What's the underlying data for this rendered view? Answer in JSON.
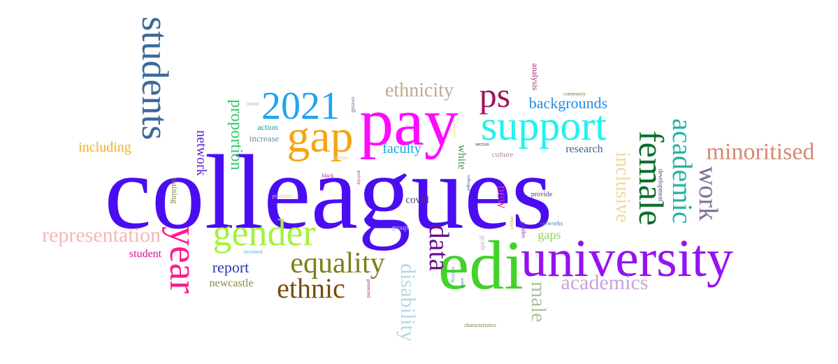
{
  "words": [
    {
      "text": "colleagues",
      "color": "#4a0df2"
    },
    {
      "text": "edi",
      "color": "#45d12c"
    },
    {
      "text": "pay",
      "color": "#ff0aff"
    },
    {
      "text": "university",
      "color": "#9512ef"
    },
    {
      "text": "students",
      "color": "#3a6a9a"
    },
    {
      "text": "support",
      "color": "#22f2ee"
    },
    {
      "text": "gap",
      "color": "#f5a511"
    },
    {
      "text": "2021",
      "color": "#1ea5ef"
    },
    {
      "text": "gender",
      "color": "#a3f23c"
    },
    {
      "text": "year",
      "color": "#ff1a8c"
    },
    {
      "text": "female",
      "color": "#0a6e2a"
    },
    {
      "text": "ps",
      "color": "#a3145f"
    },
    {
      "text": "equality",
      "color": "#7a7f1a"
    },
    {
      "text": "ethnic",
      "color": "#7a4c0a"
    },
    {
      "text": "data",
      "color": "#6b0f8c"
    },
    {
      "text": "academic",
      "color": "#22b5a5"
    },
    {
      "text": "minoritised",
      "color": "#d68a72"
    },
    {
      "text": "work",
      "color": "#7a7396"
    },
    {
      "text": "representation",
      "color": "#f5b7b2"
    },
    {
      "text": "academics",
      "color": "#c9a5d8"
    },
    {
      "text": "disability",
      "color": "#b8d5e6"
    },
    {
      "text": "inclusive",
      "color": "#f0d69a"
    },
    {
      "text": "male",
      "color": "#a8c4a0"
    },
    {
      "text": "ethnicity",
      "color": "#c4a78c"
    },
    {
      "text": "backgrounds",
      "color": "#1e8de6"
    },
    {
      "text": "proportion",
      "color": "#33c96a"
    },
    {
      "text": "network",
      "color": "#5a1fd0"
    },
    {
      "text": "report",
      "color": "#2a38b8"
    },
    {
      "text": "including",
      "color": "#f5b020"
    },
    {
      "text": "faculty",
      "color": "#1aa1e0"
    },
    {
      "text": "new",
      "color": "#d02fa8"
    },
    {
      "text": "gaps",
      "color": "#98d05a"
    },
    {
      "text": "research",
      "color": "#3a5f95"
    },
    {
      "text": "student",
      "color": "#d0148c"
    },
    {
      "text": "newcastle",
      "color": "#8a8a3a"
    },
    {
      "text": "white",
      "color": "#3f8f50"
    },
    {
      "text": "covid",
      "color": "#5a2f6e"
    },
    {
      "text": "increase",
      "color": "#6a88a8"
    },
    {
      "text": "action",
      "color": "#2a90a8"
    },
    {
      "text": "training",
      "color": "#807a3a"
    },
    {
      "text": "analysis",
      "color": "#a02a6e"
    },
    {
      "text": "culture",
      "color": "#b07a9a"
    },
    {
      "text": "provide",
      "color": "#5a3a7a"
    },
    {
      "text": "group",
      "color": "#b0cce0"
    },
    {
      "text": "grade",
      "color": "#c0b0d8"
    },
    {
      "text": "development",
      "color": "#3a4a7a"
    },
    {
      "text": "networks",
      "color": "#5a7a9a"
    },
    {
      "text": "grades",
      "color": "#8a3ab0"
    },
    {
      "text": "priorities",
      "color": "#f0b8c0"
    },
    {
      "text": "mean",
      "color": "#c0b090"
    },
    {
      "text": "overall",
      "color": "#5a6a8a"
    },
    {
      "text": "groups",
      "color": "#f0c0a0"
    },
    {
      "text": "activity",
      "color": "#c0206a"
    },
    {
      "text": "black",
      "color": "#d01a8a"
    },
    {
      "text": "section",
      "color": "#3a2a6e"
    },
    {
      "text": "community",
      "color": "#8a6a2a"
    },
    {
      "text": "however",
      "color": "#f0d080"
    },
    {
      "text": "colleague",
      "color": "#2a4a8a"
    },
    {
      "text": "impact",
      "color": "#d0a020"
    },
    {
      "text": "increased",
      "color": "#2ab0e0"
    },
    {
      "text": "protected",
      "color": "#a0205a"
    },
    {
      "text": "working",
      "color": "#3ab080"
    },
    {
      "text": "senior",
      "color": "#2a6a9a"
    },
    {
      "text": "characteristics",
      "color": "#6a8a3a"
    },
    {
      "text": "lm",
      "color": "#c0c0c0"
    }
  ]
}
